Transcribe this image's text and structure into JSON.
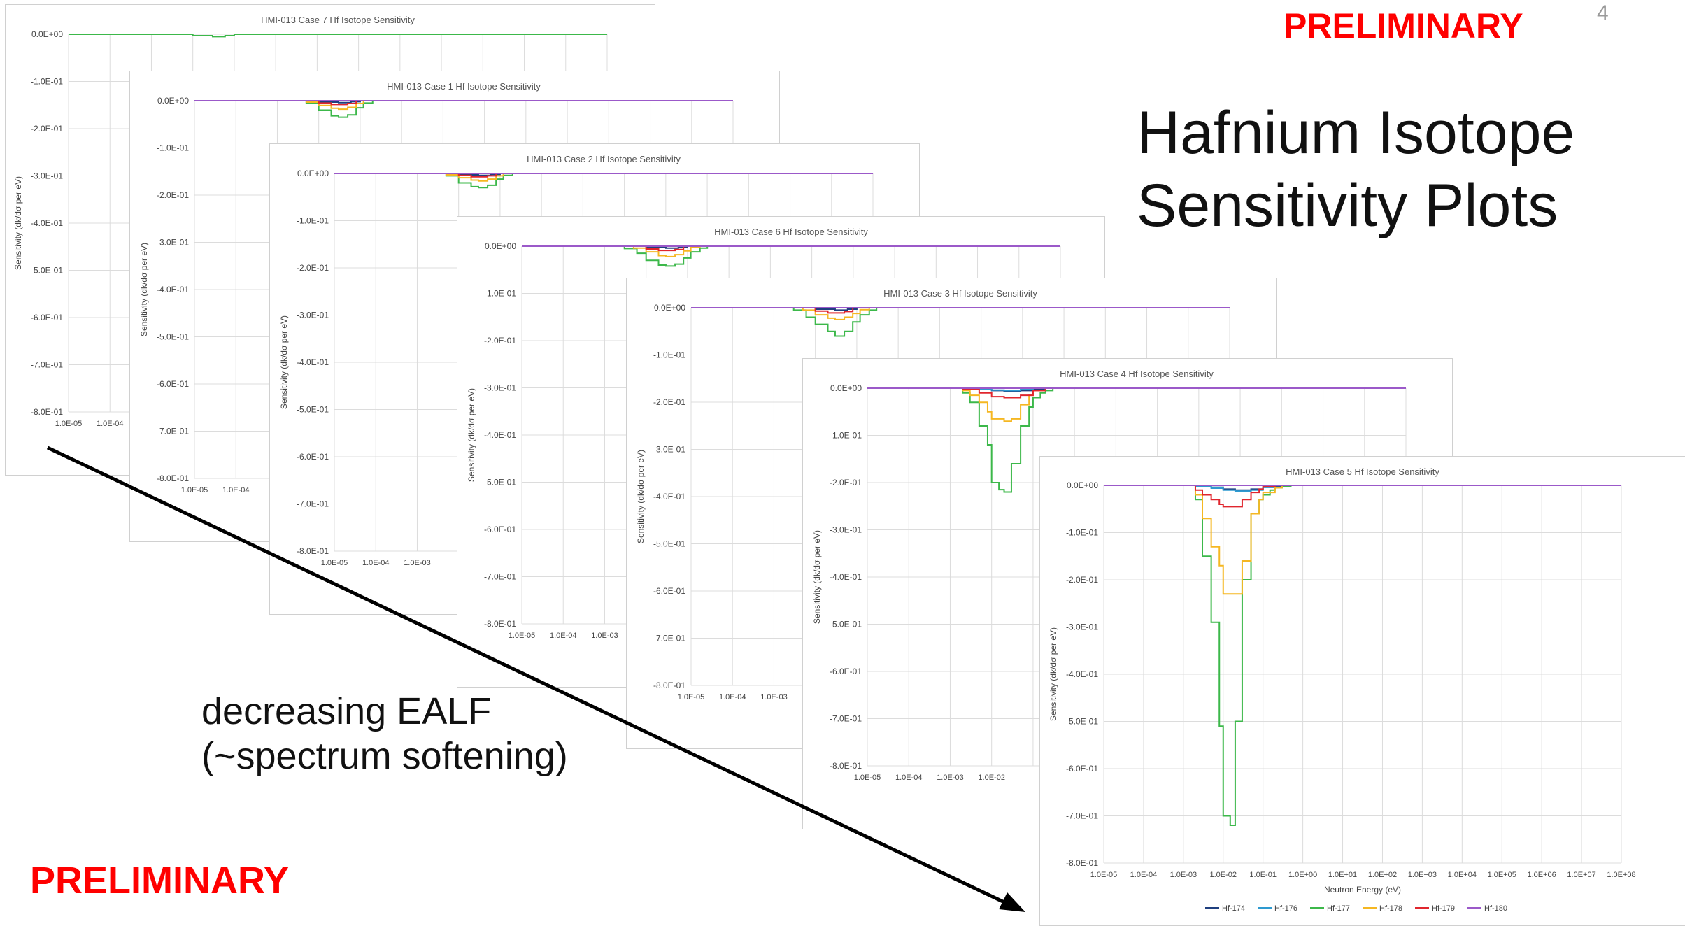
{
  "slide": {
    "page_number": "4",
    "preliminary_label": "PRELIMINARY",
    "title_line1": "Hafnium Isotope",
    "title_line2": "Sensitivity Plots",
    "note_line1": "decreasing EALF",
    "note_line2": "(~spectrum softening)"
  },
  "colors": {
    "preliminary": "#ff0000",
    "Hf-174": "#1f3f7f",
    "Hf-176": "#2e9ad0",
    "Hf-177": "#3cb84a",
    "Hf-178": "#f5b722",
    "Hf-179": "#e0262e",
    "Hf-180": "#9b59c9"
  },
  "chart_data": [
    {
      "type": "line",
      "title": "HMI-013 Case 7 Hf Isotope Sensitivity",
      "ylabel": "Sensitivity (dk/dσ per eV)",
      "xlabel": "",
      "xscale": "log",
      "ylim": [
        -0.8,
        0.0
      ],
      "yticks": [
        "0.0E+00",
        "-1.0E-01",
        "-2.0E-01",
        "-3.0E-01",
        "-4.0E-01",
        "-5.0E-01",
        "-6.0E-01",
        "-7.0E-01",
        "-8.0E-01"
      ],
      "xticks": [
        "1.0E-05",
        "1.0E-04"
      ],
      "grid": true,
      "series": [
        {
          "name": "Hf-177",
          "x": [
            1e-05,
            0.005,
            0.01,
            0.03,
            0.06,
            0.1,
            100000000.0
          ],
          "y": [
            0,
            0,
            -0.003,
            -0.005,
            -0.003,
            0,
            0
          ]
        }
      ]
    },
    {
      "type": "line",
      "title": "HMI-013 Case 1 Hf Isotope Sensitivity",
      "ylabel": "Sensitivity (dk/dσ per eV)",
      "xlabel": "",
      "xscale": "log",
      "ylim": [
        -0.8,
        0.0
      ],
      "yticks": [
        "0.0E+00",
        "-1.0E-01",
        "-2.0E-01",
        "-3.0E-01",
        "-4.0E-01",
        "-5.0E-01",
        "-6.0E-01",
        "-7.0E-01",
        "-8.0E-01"
      ],
      "xticks": [
        "1.0E-05",
        "1.0E-04"
      ],
      "grid": true,
      "series": [
        {
          "name": "Hf-174",
          "x": [
            1e-05,
            0.005,
            0.01,
            0.03,
            0.06,
            0.1,
            100000000.0
          ],
          "y": [
            0,
            0,
            -0.003,
            -0.004,
            -0.002,
            0,
            0
          ]
        },
        {
          "name": "Hf-177",
          "x": [
            1e-05,
            0.005,
            0.01,
            0.02,
            0.03,
            0.05,
            0.08,
            0.12,
            0.2,
            100000000.0
          ],
          "y": [
            0,
            -0.005,
            -0.02,
            -0.032,
            -0.035,
            -0.03,
            -0.015,
            -0.005,
            0,
            0
          ]
        },
        {
          "name": "Hf-178",
          "x": [
            1e-05,
            0.005,
            0.01,
            0.02,
            0.03,
            0.05,
            0.08,
            0.12,
            100000000.0
          ],
          "y": [
            0,
            -0.003,
            -0.01,
            -0.016,
            -0.018,
            -0.014,
            -0.006,
            0,
            0
          ]
        },
        {
          "name": "Hf-179",
          "x": [
            1e-05,
            0.01,
            0.02,
            0.05,
            0.08,
            100000000.0
          ],
          "y": [
            0,
            -0.005,
            -0.008,
            -0.006,
            0,
            0
          ]
        },
        {
          "name": "Hf-180",
          "x": [
            1e-05,
            100000000.0
          ],
          "y": [
            0,
            0
          ]
        }
      ]
    },
    {
      "type": "line",
      "title": "HMI-013 Case 2 Hf Isotope Sensitivity",
      "ylabel": "Sensitivity (dk/dσ per eV)",
      "xlabel": "",
      "xscale": "log",
      "ylim": [
        -0.8,
        0.0
      ],
      "yticks": [
        "0.0E+00",
        "-1.0E-01",
        "-2.0E-01",
        "-3.0E-01",
        "-4.0E-01",
        "-5.0E-01",
        "-6.0E-01",
        "-7.0E-01",
        "-8.0E-01"
      ],
      "xticks": [
        "1.0E-05",
        "1.0E-04",
        "1.0E-03"
      ],
      "grid": true,
      "series": [
        {
          "name": "Hf-174",
          "x": [
            1e-05,
            0.005,
            0.01,
            0.03,
            0.06,
            0.1,
            100000000.0
          ],
          "y": [
            0,
            0,
            -0.003,
            -0.004,
            -0.002,
            0,
            0
          ]
        },
        {
          "name": "Hf-177",
          "x": [
            1e-05,
            0.005,
            0.01,
            0.02,
            0.03,
            0.05,
            0.08,
            0.12,
            0.2,
            100000000.0
          ],
          "y": [
            0,
            -0.005,
            -0.02,
            -0.028,
            -0.03,
            -0.025,
            -0.012,
            -0.004,
            0,
            0
          ]
        },
        {
          "name": "Hf-178",
          "x": [
            1e-05,
            0.005,
            0.01,
            0.02,
            0.03,
            0.05,
            0.08,
            0.12,
            100000000.0
          ],
          "y": [
            0,
            -0.003,
            -0.009,
            -0.014,
            -0.016,
            -0.012,
            -0.005,
            0,
            0
          ]
        },
        {
          "name": "Hf-179",
          "x": [
            1e-05,
            0.01,
            0.02,
            0.05,
            0.08,
            100000000.0
          ],
          "y": [
            0,
            -0.004,
            -0.007,
            -0.005,
            0,
            0
          ]
        },
        {
          "name": "Hf-180",
          "x": [
            1e-05,
            100000000.0
          ],
          "y": [
            0,
            0
          ]
        }
      ]
    },
    {
      "type": "line",
      "title": "HMI-013 Case 6 Hf Isotope Sensitivity",
      "ylabel": "Sensitivity (dk/dσ per eV)",
      "xlabel": "",
      "xscale": "log",
      "ylim": [
        -0.8,
        0.0
      ],
      "yticks": [
        "0.0E+00",
        "-1.0E-01",
        "-2.0E-01",
        "-3.0E-01",
        "-4.0E-01",
        "-5.0E-01",
        "-6.0E-01",
        "-7.0E-01",
        "-8.0E-01"
      ],
      "xticks": [
        "1.0E-05",
        "1.0E-04",
        "1.0E-03"
      ],
      "grid": true,
      "series": [
        {
          "name": "Hf-174",
          "x": [
            1e-05,
            0.005,
            0.01,
            0.03,
            0.06,
            0.1,
            100000000.0
          ],
          "y": [
            0,
            0,
            -0.003,
            -0.004,
            -0.002,
            0,
            0
          ]
        },
        {
          "name": "Hf-177",
          "x": [
            1e-05,
            0.003,
            0.006,
            0.01,
            0.02,
            0.03,
            0.05,
            0.08,
            0.12,
            0.2,
            0.3,
            100000000.0
          ],
          "y": [
            0,
            -0.005,
            -0.015,
            -0.03,
            -0.04,
            -0.042,
            -0.038,
            -0.025,
            -0.012,
            -0.004,
            0,
            0
          ]
        },
        {
          "name": "Hf-178",
          "x": [
            1e-05,
            0.005,
            0.01,
            0.02,
            0.03,
            0.05,
            0.08,
            0.12,
            0.2,
            100000000.0
          ],
          "y": [
            0,
            -0.004,
            -0.012,
            -0.02,
            -0.022,
            -0.018,
            -0.01,
            -0.003,
            0,
            0
          ]
        },
        {
          "name": "Hf-179",
          "x": [
            1e-05,
            0.01,
            0.02,
            0.05,
            0.08,
            100000000.0
          ],
          "y": [
            0,
            -0.006,
            -0.009,
            -0.007,
            0,
            0
          ]
        },
        {
          "name": "Hf-180",
          "x": [
            1e-05,
            100000000.0
          ],
          "y": [
            0,
            0
          ]
        }
      ]
    },
    {
      "type": "line",
      "title": "HMI-013 Case 3 Hf Isotope Sensitivity",
      "ylabel": "Sensitivity (dk/dσ per eV)",
      "xlabel": "",
      "xscale": "log",
      "ylim": [
        -0.8,
        0.0
      ],
      "yticks": [
        "0.0E+00",
        "-1.0E-01",
        "-2.0E-01",
        "-3.0E-01",
        "-4.0E-01",
        "-5.0E-01",
        "-6.0E-01",
        "-7.0E-01",
        "-8.0E-01"
      ],
      "xticks": [
        "1.0E-05",
        "1.0E-04",
        "1.0E-03"
      ],
      "grid": true,
      "series": [
        {
          "name": "Hf-174",
          "x": [
            1e-05,
            0.005,
            0.01,
            0.03,
            0.06,
            0.1,
            100000000.0
          ],
          "y": [
            0,
            0,
            -0.003,
            -0.005,
            -0.003,
            0,
            0
          ]
        },
        {
          "name": "Hf-177",
          "x": [
            1e-05,
            0.003,
            0.006,
            0.01,
            0.02,
            0.03,
            0.05,
            0.08,
            0.12,
            0.2,
            0.3,
            100000000.0
          ],
          "y": [
            0,
            -0.005,
            -0.02,
            -0.035,
            -0.05,
            -0.06,
            -0.05,
            -0.03,
            -0.015,
            -0.005,
            0,
            0
          ]
        },
        {
          "name": "Hf-178",
          "x": [
            1e-05,
            0.005,
            0.01,
            0.02,
            0.03,
            0.05,
            0.08,
            0.12,
            0.2,
            100000000.0
          ],
          "y": [
            0,
            -0.005,
            -0.015,
            -0.022,
            -0.025,
            -0.02,
            -0.012,
            -0.004,
            0,
            0
          ]
        },
        {
          "name": "Hf-179",
          "x": [
            1e-05,
            0.01,
            0.02,
            0.05,
            0.08,
            100000000.0
          ],
          "y": [
            0,
            -0.007,
            -0.011,
            -0.008,
            0,
            0
          ]
        },
        {
          "name": "Hf-180",
          "x": [
            1e-05,
            100000000.0
          ],
          "y": [
            0,
            0
          ]
        }
      ]
    },
    {
      "type": "line",
      "title": "HMI-013 Case 4 Hf Isotope Sensitivity",
      "ylabel": "Sensitivity (dk/dσ per eV)",
      "xlabel": "",
      "xscale": "log",
      "ylim": [
        -0.8,
        0.0
      ],
      "yticks": [
        "0.0E+00",
        "-1.0E-01",
        "-2.0E-01",
        "-3.0E-01",
        "-4.0E-01",
        "-5.0E-01",
        "-6.0E-01",
        "-7.0E-01",
        "-8.0E-01"
      ],
      "xticks": [
        "1.0E-05",
        "1.0E-04",
        "1.0E-03",
        "1.0E-02"
      ],
      "grid": true,
      "legend": "bottom",
      "legend_visible": [
        "Hf-174"
      ],
      "series": [
        {
          "name": "Hf-174",
          "x": [
            1e-05,
            0.002,
            0.005,
            0.01,
            0.02,
            0.05,
            0.1,
            0.2,
            100000000.0
          ],
          "y": [
            0,
            -0.001,
            -0.003,
            -0.005,
            -0.006,
            -0.005,
            -0.002,
            0,
            0
          ]
        },
        {
          "name": "Hf-176",
          "x": [
            1e-05,
            0.005,
            0.01,
            0.02,
            0.05,
            0.1,
            100000000.0
          ],
          "y": [
            0,
            -0.002,
            -0.004,
            -0.005,
            -0.003,
            0,
            0
          ]
        },
        {
          "name": "Hf-177",
          "x": [
            1e-05,
            0.002,
            0.003,
            0.005,
            0.008,
            0.01,
            0.015,
            0.02,
            0.03,
            0.05,
            0.08,
            0.1,
            0.15,
            0.2,
            0.3,
            100000000.0
          ],
          "y": [
            0,
            -0.01,
            -0.03,
            -0.08,
            -0.12,
            -0.2,
            -0.215,
            -0.22,
            -0.16,
            -0.08,
            -0.04,
            -0.02,
            -0.01,
            -0.005,
            0,
            0
          ]
        },
        {
          "name": "Hf-178",
          "x": [
            1e-05,
            0.002,
            0.003,
            0.005,
            0.008,
            0.01,
            0.02,
            0.03,
            0.05,
            0.08,
            0.1,
            0.2,
            100000000.0
          ],
          "y": [
            0,
            -0.005,
            -0.015,
            -0.03,
            -0.05,
            -0.065,
            -0.07,
            -0.065,
            -0.035,
            -0.015,
            -0.005,
            0,
            0
          ]
        },
        {
          "name": "Hf-179",
          "x": [
            1e-05,
            0.002,
            0.005,
            0.01,
            0.02,
            0.05,
            0.1,
            0.2,
            100000000.0
          ],
          "y": [
            0,
            -0.003,
            -0.01,
            -0.018,
            -0.02,
            -0.015,
            -0.005,
            0,
            0
          ]
        },
        {
          "name": "Hf-180",
          "x": [
            1e-05,
            100000000.0
          ],
          "y": [
            0,
            0
          ]
        }
      ]
    },
    {
      "type": "line",
      "title": "HMI-013 Case 5 Hf Isotope Sensitivity",
      "ylabel": "Sensitivity (dk/dσ per eV)",
      "xlabel": "Neutron Energy (eV)",
      "xscale": "log",
      "ylim": [
        -0.8,
        0.0
      ],
      "yticks": [
        "0.0E+00",
        "-1.0E-01",
        "-2.0E-01",
        "-3.0E-01",
        "-4.0E-01",
        "-5.0E-01",
        "-6.0E-01",
        "-7.0E-01",
        "-8.0E-01"
      ],
      "xticks": [
        "1.0E-05",
        "1.0E-04",
        "1.0E-03",
        "1.0E-02",
        "1.0E-01",
        "1.0E+00",
        "1.0E+01",
        "1.0E+02",
        "1.0E+03",
        "1.0E+04",
        "1.0E+05",
        "1.0E+06",
        "1.0E+07",
        "1.0E+08"
      ],
      "grid": true,
      "legend": "bottom",
      "series": [
        {
          "name": "Hf-174",
          "x": [
            1e-05,
            0.002,
            0.005,
            0.01,
            0.02,
            0.05,
            0.1,
            0.2,
            0.4,
            100000000.0
          ],
          "y": [
            0,
            -0.002,
            -0.004,
            -0.008,
            -0.01,
            -0.008,
            -0.004,
            -0.002,
            0,
            0
          ]
        },
        {
          "name": "Hf-176",
          "x": [
            1e-05,
            0.002,
            0.005,
            0.01,
            0.02,
            0.05,
            0.1,
            0.3,
            100000000.0
          ],
          "y": [
            0,
            -0.003,
            -0.006,
            -0.01,
            -0.012,
            -0.01,
            -0.004,
            0,
            0
          ]
        },
        {
          "name": "Hf-177",
          "x": [
            1e-05,
            0.002,
            0.003,
            0.005,
            0.008,
            0.01,
            0.015,
            0.02,
            0.03,
            0.05,
            0.08,
            0.1,
            0.15,
            0.2,
            0.3,
            0.5,
            100000000.0
          ],
          "y": [
            0,
            -0.03,
            -0.15,
            -0.29,
            -0.51,
            -0.7,
            -0.72,
            -0.5,
            -0.2,
            -0.06,
            -0.03,
            -0.02,
            -0.01,
            -0.005,
            -0.002,
            0,
            0
          ]
        },
        {
          "name": "Hf-178",
          "x": [
            1e-05,
            0.002,
            0.003,
            0.005,
            0.008,
            0.01,
            0.02,
            0.03,
            0.05,
            0.08,
            0.1,
            0.2,
            0.3,
            100000000.0
          ],
          "y": [
            0,
            -0.02,
            -0.07,
            -0.13,
            -0.17,
            -0.23,
            -0.23,
            -0.16,
            -0.06,
            -0.03,
            -0.015,
            -0.005,
            0,
            0
          ]
        },
        {
          "name": "Hf-179",
          "x": [
            1e-05,
            0.002,
            0.003,
            0.005,
            0.008,
            0.01,
            0.02,
            0.03,
            0.05,
            0.08,
            0.1,
            0.2,
            100000000.0
          ],
          "y": [
            0,
            -0.01,
            -0.02,
            -0.03,
            -0.04,
            -0.045,
            -0.045,
            -0.03,
            -0.015,
            -0.008,
            -0.003,
            0,
            0
          ]
        },
        {
          "name": "Hf-180",
          "x": [
            1e-05,
            100000000.0
          ],
          "y": [
            0,
            0
          ]
        }
      ]
    }
  ]
}
